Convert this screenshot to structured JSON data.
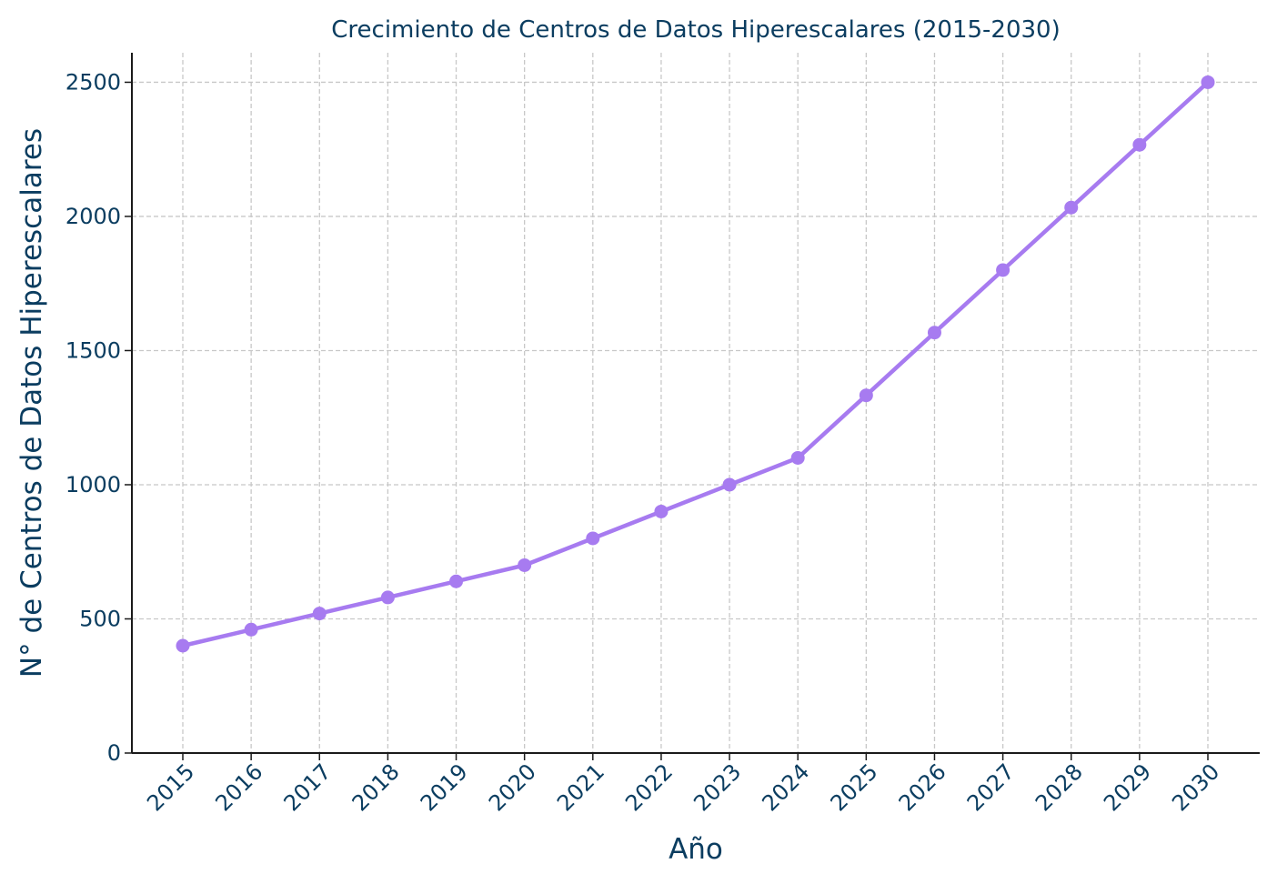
{
  "colors": {
    "line": "#A77BF0",
    "text": "#0B3D60",
    "grid": "#C8C8C8",
    "axis": "#1A1A1A"
  },
  "chart_data": {
    "type": "line",
    "title": "Crecimiento de Centros de Datos Hiperescalares (2015-2030)",
    "xlabel": "Año",
    "ylabel": "N° de Centros de Datos Hiperescalares",
    "x": [
      "2015",
      "2016",
      "2017",
      "2018",
      "2019",
      "2020",
      "2021",
      "2022",
      "2023",
      "2024",
      "2025",
      "2026",
      "2027",
      "2028",
      "2029",
      "2030"
    ],
    "series": [
      {
        "values": [
          400,
          460,
          520,
          580,
          640,
          700,
          800,
          900,
          1000,
          1100,
          1333,
          1567,
          1800,
          2033,
          2267,
          2500
        ]
      }
    ],
    "ylim": [
      0,
      2610
    ],
    "yticks": [
      "0",
      "500",
      "1000",
      "1500",
      "2000",
      "2500"
    ],
    "grid": true,
    "marker": "circle"
  }
}
